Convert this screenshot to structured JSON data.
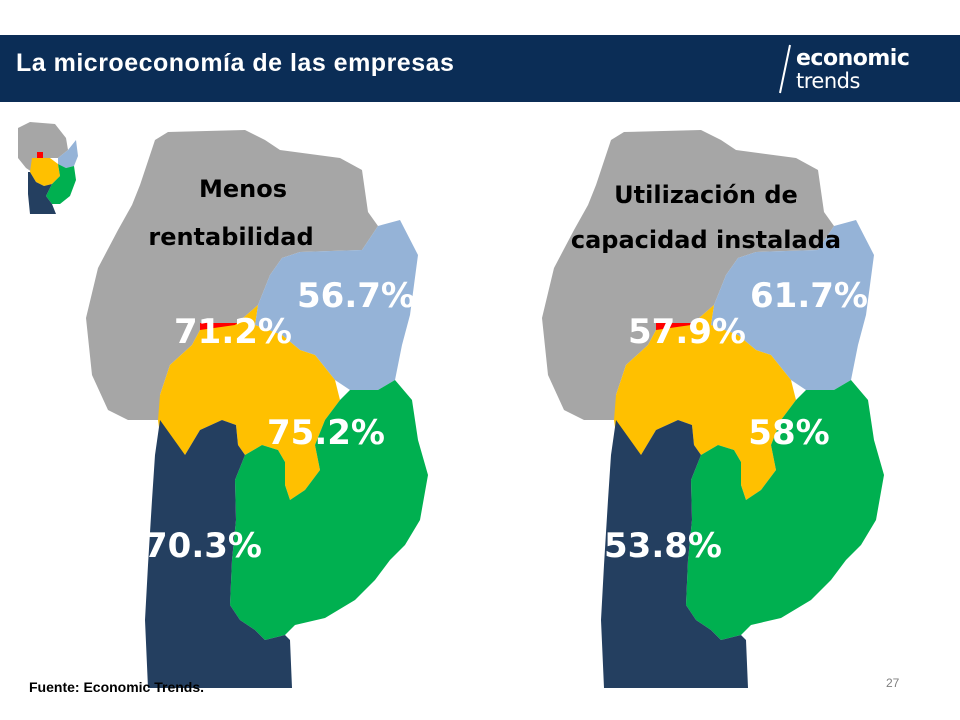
{
  "header": {
    "title": "La microeconomía de las empresas",
    "brand_top": "economic",
    "brand_bottom": "trends"
  },
  "colors": {
    "header_bg": "#0b2d56",
    "north": "#a6a6a6",
    "northeast": "#95b3d7",
    "capital": "#ff0000",
    "center": "#ffc000",
    "south": "#00b050",
    "west_south": "#243f60"
  },
  "maps": [
    {
      "title_line1": "Menos",
      "title_line2": "rentabilidad",
      "regions": {
        "northeast": "56.7%",
        "capital": "71.2%",
        "center": "75.2%",
        "southwest": "70.3%"
      }
    },
    {
      "title_line1": "Utilización de",
      "title_line2": "capacidad instalada",
      "regions": {
        "northeast": "61.7%",
        "capital": "57.9%",
        "center": "58%",
        "southwest": "53.8%"
      }
    }
  ],
  "footer": {
    "source": "Fuente: Economic Trends.",
    "page": "27"
  }
}
